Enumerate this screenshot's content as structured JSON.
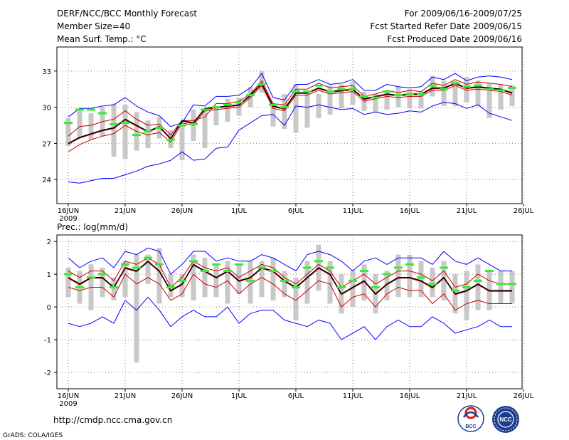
{
  "header": {
    "title": "DERF/NCC/BCC Monthly Forecast",
    "member_size": "Member Size=40",
    "variable": "Mean Surf. Temp.: °C",
    "period": "For 2009/06/16-2009/07/25",
    "fcst_started": "Fcst Started Refer Date 2009/06/15",
    "fcst_produced": "Fcst Produced Date 2009/06/16"
  },
  "footer": {
    "url": "http://cmdp.ncc.cma.gov.cn",
    "grads": "GrADS: COLA/IGES",
    "logo_bcc": "BCC",
    "logo_ncc": "NCC"
  },
  "colors": {
    "envelope": "#0000ff",
    "mean": "#000000",
    "mean_shade": "#c80000",
    "bars": "#c8c8c8",
    "obs": "#33ee33",
    "grid": "#888888"
  },
  "chart_data": [
    {
      "type": "line",
      "title": "Mean Surf. Temp.: °C",
      "xlabel": "",
      "ylabel": "",
      "x_ticks": [
        "16JUN",
        "21JUN",
        "26JUN",
        "1JUL",
        "6JUL",
        "11JUL",
        "16JUL",
        "21JUL",
        "26JUL"
      ],
      "x_tick_days": [
        0,
        5,
        10,
        15,
        20,
        25,
        30,
        35,
        40
      ],
      "x_year": "2009",
      "xlim": [
        0,
        40
      ],
      "y_ticks": [
        "24",
        "27",
        "30",
        "33"
      ],
      "y_tick_values": [
        24,
        27,
        30,
        33
      ],
      "ylim": [
        22,
        35
      ],
      "grid": true,
      "days": [
        0,
        1,
        2,
        3,
        4,
        5,
        6,
        7,
        8,
        9,
        10,
        11,
        12,
        13,
        14,
        15,
        16,
        17,
        18,
        19,
        20,
        21,
        22,
        23,
        24,
        25,
        26,
        27,
        28,
        29,
        30,
        31,
        32,
        33,
        34,
        35,
        36,
        37,
        38,
        39
      ],
      "series": [
        {
          "name": "ensemble max",
          "values": [
            29.2,
            29.9,
            29.9,
            30.1,
            30.2,
            30.8,
            30.1,
            29.6,
            29.3,
            28.4,
            28.7,
            30.2,
            30.1,
            30.9,
            30.9,
            31.0,
            31.6,
            32.8,
            30.8,
            30.6,
            31.9,
            31.9,
            32.3,
            31.9,
            32.0,
            32.3,
            31.4,
            31.4,
            31.9,
            31.7,
            31.6,
            31.7,
            32.5,
            32.3,
            32.8,
            32.2,
            32.5,
            32.6,
            32.5,
            32.3
          ]
        },
        {
          "name": "upper",
          "values": [
            27.6,
            28.4,
            28.5,
            28.8,
            29.0,
            29.7,
            29.0,
            28.5,
            28.6,
            27.7,
            28.9,
            28.9,
            29.2,
            30.3,
            30.3,
            30.5,
            31.1,
            32.2,
            30.3,
            30.2,
            31.5,
            31.5,
            32.0,
            31.6,
            31.7,
            31.8,
            30.9,
            31.1,
            31.4,
            31.2,
            31.4,
            31.3,
            32.0,
            31.8,
            32.3,
            31.9,
            32.1,
            32.0,
            31.9,
            31.7
          ]
        },
        {
          "name": "ensemble mean",
          "values": [
            27.0,
            27.5,
            27.8,
            28.1,
            28.3,
            29.0,
            28.5,
            28.0,
            28.4,
            27.4,
            28.9,
            28.7,
            29.9,
            30.0,
            30.1,
            30.2,
            31.0,
            32.0,
            30.1,
            29.9,
            31.2,
            31.2,
            31.6,
            31.3,
            31.4,
            31.5,
            30.7,
            30.9,
            31.1,
            31.0,
            31.1,
            31.1,
            31.6,
            31.6,
            32.0,
            31.6,
            31.7,
            31.6,
            31.5,
            31.2
          ]
        },
        {
          "name": "lower",
          "values": [
            26.3,
            26.9,
            27.3,
            27.6,
            27.8,
            28.5,
            28.0,
            27.7,
            27.9,
            27.1,
            28.7,
            28.5,
            29.7,
            29.8,
            29.9,
            30.0,
            30.8,
            31.8,
            29.9,
            29.7,
            31.0,
            31.0,
            31.4,
            31.1,
            31.2,
            31.3,
            30.5,
            30.7,
            30.9,
            30.8,
            30.9,
            30.9,
            31.4,
            31.4,
            31.8,
            31.4,
            31.5,
            31.4,
            31.3,
            31.0
          ]
        },
        {
          "name": "ensemble min",
          "values": [
            23.8,
            23.7,
            23.9,
            24.1,
            24.1,
            24.4,
            24.7,
            25.1,
            25.3,
            25.6,
            26.3,
            25.6,
            25.7,
            26.6,
            26.7,
            28.1,
            28.7,
            29.3,
            29.4,
            28.5,
            30.1,
            30.0,
            30.2,
            30.0,
            29.8,
            29.9,
            29.4,
            29.6,
            29.4,
            29.5,
            29.7,
            29.6,
            30.1,
            30.4,
            30.3,
            29.9,
            30.2,
            29.5,
            29.2,
            28.9
          ]
        },
        {
          "name": "spread low",
          "values": [
            26.8,
            27.5,
            27.3,
            27.6,
            25.9,
            25.7,
            26.4,
            26.6,
            27.4,
            26.6,
            25.6,
            27.2,
            26.6,
            28.5,
            28.8,
            29.3,
            30.0,
            31.2,
            28.4,
            28.2,
            27.9,
            28.3,
            29.1,
            29.4,
            29.9,
            30.2,
            29.7,
            29.6,
            29.8,
            30.0,
            29.9,
            29.9,
            30.9,
            30.1,
            30.1,
            30.4,
            30.1,
            29.1,
            29.8,
            30.1
          ]
        },
        {
          "name": "spread high",
          "values": [
            29.1,
            29.7,
            29.5,
            30.0,
            30.3,
            30.2,
            29.6,
            28.9,
            29.2,
            28.1,
            28.6,
            29.8,
            29.8,
            30.1,
            30.7,
            30.8,
            31.7,
            33.0,
            30.2,
            31.1,
            31.9,
            31.3,
            31.1,
            31.8,
            31.9,
            32.1,
            31.3,
            31.1,
            31.4,
            31.7,
            31.5,
            31.3,
            32.6,
            32.2,
            32.2,
            32.5,
            32.2,
            32.0,
            31.9,
            31.8
          ]
        },
        {
          "name": "obs",
          "values": [
            28.7,
            29.8,
            29.8,
            29.5,
            28.6,
            28.7,
            27.7,
            28.0,
            28.3,
            27.3,
            28.5,
            28.6,
            29.8,
            30.0,
            30.2,
            30.4,
            31.0,
            31.9,
            30.2,
            30.0,
            31.3,
            31.3,
            31.8,
            31.3,
            31.5,
            31.5,
            30.9,
            30.8,
            31.3,
            31.0,
            31.1,
            31.1,
            31.8,
            31.5,
            32.0,
            31.7,
            31.8,
            31.5,
            31.4,
            31.6
          ]
        }
      ]
    },
    {
      "type": "line",
      "title": "Prec.: log(mm/d)",
      "xlabel": "",
      "ylabel": "",
      "x_ticks": [
        "16JUN",
        "21JUN",
        "26JUN",
        "1JUL",
        "6JUL",
        "11JUL",
        "16JUL",
        "21JUL",
        "26JUL"
      ],
      "x_tick_days": [
        0,
        5,
        10,
        15,
        20,
        25,
        30,
        35,
        40
      ],
      "x_year": "2009",
      "xlim": [
        0,
        40
      ],
      "y_ticks": [
        "-2",
        "-1",
        "0",
        "1",
        "2"
      ],
      "y_tick_values": [
        -2,
        -1,
        0,
        1,
        2
      ],
      "ylim": [
        -2.5,
        2.2
      ],
      "grid": true,
      "days": [
        0,
        1,
        2,
        3,
        4,
        5,
        6,
        7,
        8,
        9,
        10,
        11,
        12,
        13,
        14,
        15,
        16,
        17,
        18,
        19,
        20,
        21,
        22,
        23,
        24,
        25,
        26,
        27,
        28,
        29,
        30,
        31,
        32,
        33,
        34,
        35,
        36,
        37,
        38,
        39
      ],
      "series": [
        {
          "name": "ensemble max",
          "values": [
            1.5,
            1.2,
            1.4,
            1.5,
            1.2,
            1.7,
            1.6,
            1.8,
            1.7,
            1.0,
            1.3,
            1.7,
            1.7,
            1.4,
            1.5,
            1.4,
            1.4,
            1.6,
            1.5,
            1.3,
            1.1,
            1.6,
            1.7,
            1.6,
            1.4,
            1.1,
            1.4,
            1.5,
            1.3,
            1.5,
            1.5,
            1.5,
            1.3,
            1.7,
            1.4,
            1.3,
            1.5,
            1.3,
            1.1,
            1.1
          ]
        },
        {
          "name": "upper",
          "values": [
            1.1,
            0.9,
            1.1,
            1.1,
            0.8,
            1.4,
            1.3,
            1.5,
            1.3,
            0.6,
            0.9,
            1.4,
            1.2,
            1.1,
            1.2,
            0.9,
            1.1,
            1.3,
            1.2,
            0.9,
            0.7,
            1.0,
            1.3,
            1.1,
            0.6,
            0.8,
            1.0,
            0.7,
            0.9,
            1.1,
            1.1,
            1.0,
            0.8,
            1.1,
            0.6,
            0.7,
            1.0,
            0.8,
            0.7,
            0.7
          ]
        },
        {
          "name": "ensemble mean",
          "values": [
            0.9,
            0.7,
            0.9,
            0.9,
            0.6,
            1.2,
            1.1,
            1.4,
            1.1,
            0.5,
            0.7,
            1.3,
            1.1,
            0.9,
            1.1,
            0.8,
            0.9,
            1.2,
            1.1,
            0.8,
            0.6,
            0.9,
            1.2,
            1.0,
            0.4,
            0.6,
            0.8,
            0.4,
            0.7,
            0.9,
            0.9,
            0.8,
            0.6,
            0.9,
            0.4,
            0.5,
            0.7,
            0.5,
            0.5,
            0.5
          ]
        },
        {
          "name": "lower",
          "values": [
            0.6,
            0.5,
            0.6,
            0.6,
            0.3,
            1.0,
            0.7,
            0.9,
            0.7,
            0.2,
            0.4,
            1.0,
            0.7,
            0.6,
            0.8,
            0.4,
            0.7,
            0.9,
            0.7,
            0.4,
            0.2,
            0.5,
            0.8,
            0.7,
            0.0,
            0.3,
            0.4,
            0.0,
            0.4,
            0.6,
            0.5,
            0.5,
            0.1,
            0.4,
            -0.1,
            0.1,
            0.2,
            0.1,
            0.1,
            0.1
          ]
        },
        {
          "name": "ensemble min",
          "values": [
            -0.5,
            -0.6,
            -0.5,
            -0.3,
            -0.5,
            0.2,
            -0.1,
            0.3,
            -0.1,
            -0.6,
            -0.3,
            -0.1,
            -0.3,
            -0.3,
            0.0,
            -0.5,
            -0.2,
            -0.1,
            -0.1,
            -0.4,
            -0.5,
            -0.6,
            -0.4,
            -0.5,
            -1.0,
            -0.8,
            -0.6,
            -1.0,
            -0.6,
            -0.4,
            -0.6,
            -0.6,
            -0.3,
            -0.5,
            -0.8,
            -0.7,
            -0.6,
            -0.4,
            -0.6,
            -0.6
          ]
        },
        {
          "name": "spread low",
          "values": [
            0.3,
            0.1,
            -0.1,
            0.3,
            0.2,
            0.3,
            -1.7,
            0.7,
            0.1,
            0.3,
            0.3,
            0.2,
            0.3,
            0.3,
            0.1,
            0.4,
            0.1,
            0.3,
            0.2,
            0.3,
            -0.4,
            0.1,
            0.5,
            0.1,
            -0.2,
            0.0,
            0.2,
            -0.2,
            0.2,
            0.3,
            0.3,
            0.3,
            0.3,
            0.2,
            -0.2,
            -0.4,
            -0.1,
            -0.1,
            0.1,
            0.1
          ]
        },
        {
          "name": "spread high",
          "values": [
            1.2,
            1.1,
            1.3,
            1.2,
            0.9,
            1.4,
            1.6,
            1.6,
            1.8,
            1.0,
            1.0,
            1.6,
            1.5,
            1.3,
            1.4,
            1.3,
            1.4,
            1.4,
            1.5,
            1.1,
            0.9,
            1.4,
            1.9,
            1.4,
            1.0,
            1.1,
            1.3,
            1.0,
            1.1,
            1.6,
            1.6,
            1.4,
            1.2,
            1.4,
            1.0,
            1.1,
            1.3,
            1.1,
            1.1,
            1.1
          ]
        },
        {
          "name": "obs",
          "values": [
            1.0,
            0.6,
            0.9,
            1.0,
            0.6,
            1.3,
            1.2,
            1.5,
            1.3,
            0.6,
            0.8,
            1.4,
            1.1,
            1.3,
            1.1,
            1.3,
            0.8,
            1.2,
            1.1,
            0.8,
            0.6,
            1.2,
            1.4,
            1.2,
            0.6,
            0.8,
            1.1,
            0.6,
            1.0,
            1.2,
            1.3,
            0.9,
            0.7,
            1.2,
            0.5,
            0.6,
            0.8,
            1.1,
            0.7,
            0.7
          ]
        }
      ]
    }
  ]
}
